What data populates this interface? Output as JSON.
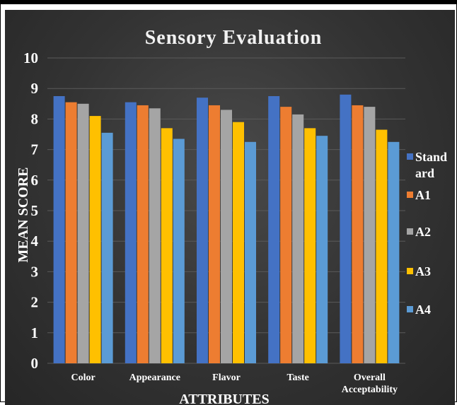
{
  "chart_data": {
    "type": "bar",
    "title": "Sensory Evaluation",
    "xlabel": "ATTRIBUTES",
    "ylabel": "MEAN SCORE",
    "ylim": [
      0,
      10
    ],
    "yticks": [
      0,
      1,
      2,
      3,
      4,
      5,
      6,
      7,
      8,
      9,
      10
    ],
    "categories": [
      "Color",
      "Appearance",
      "Flavor",
      "Taste",
      "Overall Acceptability"
    ],
    "category_lines": [
      [
        "Color"
      ],
      [
        "Appearance"
      ],
      [
        "Flavor"
      ],
      [
        "Taste"
      ],
      [
        "Overall",
        "Acceptability"
      ]
    ],
    "grid": true,
    "legend_position": "right",
    "series": [
      {
        "name": "Standard",
        "legend_lines": [
          "Stand",
          "ard"
        ],
        "color": "#4472C4",
        "values": [
          8.75,
          8.55,
          8.7,
          8.75,
          8.8
        ]
      },
      {
        "name": "A1",
        "legend_lines": [
          "A1"
        ],
        "color": "#ED7D31",
        "values": [
          8.55,
          8.45,
          8.45,
          8.4,
          8.45
        ]
      },
      {
        "name": "A2",
        "legend_lines": [
          "A2"
        ],
        "color": "#A5A5A5",
        "values": [
          8.5,
          8.35,
          8.3,
          8.15,
          8.4
        ]
      },
      {
        "name": "A3",
        "legend_lines": [
          "A3"
        ],
        "color": "#FFC000",
        "values": [
          8.1,
          7.7,
          7.9,
          7.7,
          7.65
        ]
      },
      {
        "name": "A4",
        "legend_lines": [
          "A4"
        ],
        "color": "#5B9BD5",
        "values": [
          7.55,
          7.35,
          7.25,
          7.45,
          7.25
        ]
      }
    ]
  }
}
